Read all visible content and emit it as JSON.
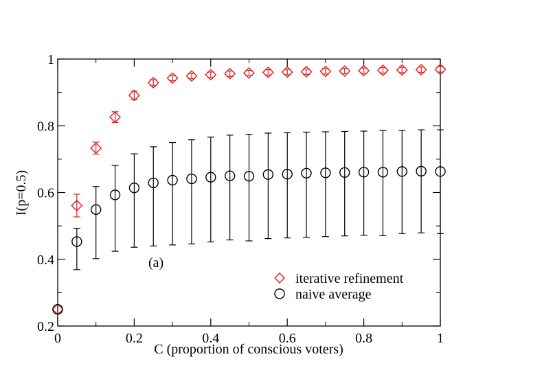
{
  "chart_data": {
    "type": "scatter",
    "title": "",
    "xlabel": "C (proportion of conscious voters)",
    "ylabel": "I(p=0.5)",
    "xlim": [
      0,
      1
    ],
    "ylim": [
      0.2,
      1
    ],
    "x_ticks": [
      "0",
      "0.2",
      "0.4",
      "0.6",
      "0.8",
      "1"
    ],
    "y_ticks": [
      "0.2",
      "0.4",
      "0.6",
      "0.8",
      "1"
    ],
    "annotation": "(a)",
    "legend_position": "bottom-right",
    "x": [
      0,
      0.05,
      0.1,
      0.15,
      0.2,
      0.25,
      0.3,
      0.35,
      0.4,
      0.45,
      0.5,
      0.55,
      0.6,
      0.65,
      0.7,
      0.75,
      0.8,
      0.85,
      0.9,
      0.95,
      1.0
    ],
    "series": [
      {
        "name": "iterative refinement",
        "marker": "diamond",
        "color": "#e41a1c",
        "values": [
          0.25,
          0.561,
          0.733,
          0.826,
          0.891,
          0.929,
          0.943,
          0.949,
          0.953,
          0.956,
          0.958,
          0.96,
          0.961,
          0.962,
          0.963,
          0.964,
          0.965,
          0.966,
          0.967,
          0.968,
          0.969
        ],
        "err_low": [
          0.25,
          0.527,
          0.715,
          0.81,
          0.878,
          0.92,
          0.935,
          0.941,
          0.945,
          0.948,
          0.95,
          0.952,
          0.953,
          0.954,
          0.955,
          0.956,
          0.957,
          0.958,
          0.959,
          0.96,
          0.961
        ],
        "err_high": [
          0.25,
          0.595,
          0.751,
          0.842,
          0.904,
          0.938,
          0.951,
          0.957,
          0.961,
          0.964,
          0.966,
          0.968,
          0.969,
          0.97,
          0.971,
          0.972,
          0.973,
          0.974,
          0.975,
          0.976,
          0.977
        ]
      },
      {
        "name": "naive average",
        "marker": "circle",
        "color": "#000000",
        "values": [
          0.25,
          0.453,
          0.549,
          0.593,
          0.614,
          0.629,
          0.637,
          0.641,
          0.646,
          0.65,
          0.649,
          0.654,
          0.655,
          0.658,
          0.659,
          0.66,
          0.661,
          0.661,
          0.663,
          0.664,
          0.663
        ],
        "err_low": [
          0.25,
          0.369,
          0.402,
          0.424,
          0.436,
          0.44,
          0.443,
          0.446,
          0.452,
          0.458,
          0.455,
          0.462,
          0.464,
          0.466,
          0.468,
          0.47,
          0.472,
          0.471,
          0.477,
          0.479,
          0.477
        ],
        "err_high": [
          0.25,
          0.493,
          0.618,
          0.681,
          0.716,
          0.737,
          0.75,
          0.758,
          0.766,
          0.772,
          0.774,
          0.778,
          0.779,
          0.781,
          0.782,
          0.783,
          0.784,
          0.786,
          0.786,
          0.788,
          0.788
        ]
      }
    ]
  }
}
